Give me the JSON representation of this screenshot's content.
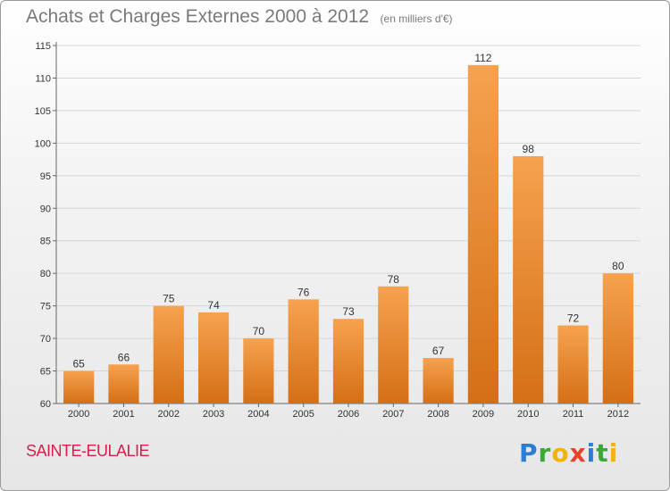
{
  "title": {
    "main": "Achats et Charges Externes 2000 à 2012",
    "unit": "(en milliers d'€)"
  },
  "commune": "SAINTE-EULALIE",
  "logo": {
    "text": "Proxiti",
    "colors": [
      "#2a7fd4",
      "#3aa83a",
      "#f2b214",
      "#e8432d"
    ]
  },
  "colors": {
    "bar_top": "#f6a24f",
    "bar_bottom": "#d46f16",
    "grid": "#d6d6d6",
    "axis": "#666666",
    "commune": "#d81e4b"
  },
  "chart_data": {
    "type": "bar",
    "title": "Achats et Charges Externes 2000 à 2012",
    "subtitle": "(en milliers d'€)",
    "xlabel": "",
    "ylabel": "",
    "categories": [
      "2000",
      "2001",
      "2002",
      "2003",
      "2004",
      "2005",
      "2006",
      "2007",
      "2008",
      "2009",
      "2010",
      "2011",
      "2012"
    ],
    "values": [
      65,
      66,
      75,
      74,
      70,
      76,
      73,
      78,
      67,
      112,
      98,
      72,
      80
    ],
    "ylim": [
      60,
      115
    ],
    "yticks": [
      60,
      65,
      70,
      75,
      80,
      85,
      90,
      95,
      100,
      105,
      110,
      115
    ],
    "grid": true,
    "legend": "none"
  }
}
